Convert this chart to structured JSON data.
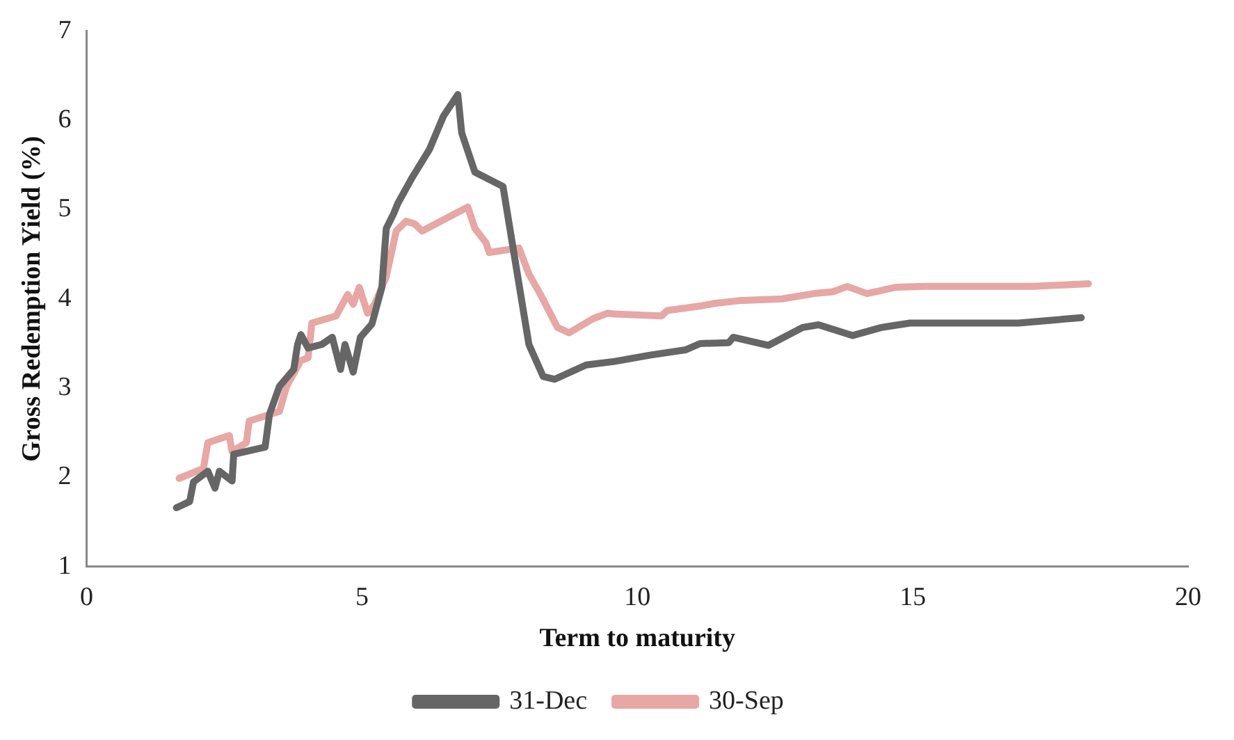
{
  "chart_data": {
    "type": "line",
    "xlabel": "Term to maturity",
    "ylabel": "Gross Redemption Yield (%)",
    "xlim": [
      0,
      20
    ],
    "xticks": [
      0,
      5,
      10,
      15,
      20
    ],
    "ylim": [
      1,
      7
    ],
    "yticks": [
      1,
      2,
      3,
      4,
      5,
      6,
      7
    ],
    "grid": false,
    "legend": "bottom",
    "marker": "none",
    "line_style": "solid",
    "series": [
      {
        "name": "31-Dec",
        "color": "#666666",
        "x": [
          1.63,
          1.87,
          1.94,
          2.2,
          2.33,
          2.41,
          2.64,
          2.67,
          3.24,
          3.32,
          3.5,
          3.76,
          3.83,
          3.89,
          4.02,
          4.27,
          4.46,
          4.61,
          4.69,
          4.84,
          4.97,
          5.18,
          5.36,
          5.44,
          5.57,
          5.65,
          5.91,
          6.22,
          6.48,
          6.74,
          6.81,
          7.05,
          7.56,
          7.82,
          8.03,
          8.29,
          8.5,
          9.07,
          9.59,
          10.23,
          10.88,
          11.14,
          11.66,
          11.74,
          12.38,
          13.0,
          13.29,
          13.91,
          14.43,
          14.95,
          16.92,
          18.06
        ],
        "values": [
          1.66,
          1.73,
          1.95,
          2.07,
          1.88,
          2.07,
          1.96,
          2.26,
          2.34,
          2.71,
          3.02,
          3.21,
          3.49,
          3.6,
          3.45,
          3.49,
          3.57,
          3.21,
          3.49,
          3.18,
          3.57,
          3.72,
          4.13,
          4.79,
          4.95,
          5.07,
          5.36,
          5.67,
          6.05,
          6.29,
          5.86,
          5.42,
          5.26,
          4.28,
          3.49,
          3.13,
          3.1,
          3.26,
          3.3,
          3.37,
          3.43,
          3.5,
          3.51,
          3.57,
          3.48,
          3.68,
          3.71,
          3.59,
          3.68,
          3.73,
          3.73,
          3.79
        ]
      },
      {
        "name": "30-Sep",
        "color": "#e6a7a5",
        "x": [
          1.68,
          2.12,
          2.2,
          2.59,
          2.64,
          2.9,
          2.95,
          3.5,
          3.63,
          3.89,
          4.02,
          4.09,
          4.53,
          4.74,
          4.84,
          4.95,
          5.1,
          5.23,
          5.44,
          5.62,
          5.8,
          5.96,
          6.09,
          6.92,
          7.05,
          7.25,
          7.31,
          7.85,
          8.03,
          8.24,
          8.55,
          8.76,
          9.2,
          9.46,
          9.59,
          10.44,
          10.54,
          11.14,
          11.4,
          11.84,
          12.62,
          13.21,
          13.55,
          13.81,
          14.17,
          14.69,
          15.21,
          17.18,
          18.19
        ],
        "values": [
          1.99,
          2.1,
          2.39,
          2.47,
          2.29,
          2.39,
          2.63,
          2.74,
          3.02,
          3.31,
          3.34,
          3.73,
          3.81,
          4.05,
          3.94,
          4.13,
          3.84,
          3.94,
          4.25,
          4.76,
          4.87,
          4.84,
          4.76,
          5.03,
          4.79,
          4.63,
          4.52,
          4.57,
          4.28,
          4.05,
          3.68,
          3.62,
          3.78,
          3.84,
          3.83,
          3.81,
          3.87,
          3.92,
          3.95,
          3.98,
          4.0,
          4.06,
          4.08,
          4.14,
          4.06,
          4.13,
          4.14,
          4.14,
          4.17
        ]
      }
    ]
  }
}
